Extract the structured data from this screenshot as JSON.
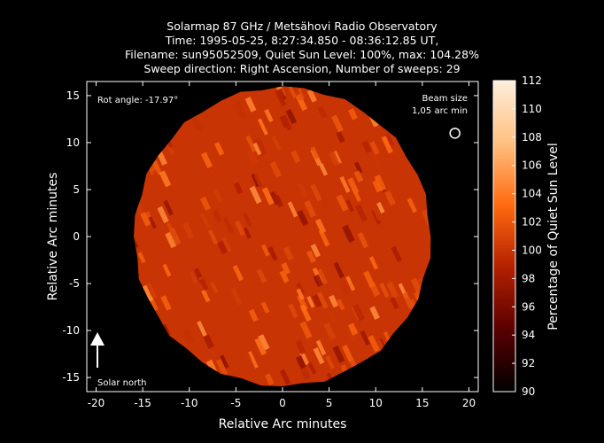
{
  "chart_data": {
    "type": "heatmap",
    "title_lines": [
      "Solarmap 87 GHz / Metsähovi Radio Observatory",
      "Time: 1995-05-25,  8:27:34.850 - 08:36:12.85 UT,",
      "Filename: sun95052509, Quiet Sun Level: 100%, max: 104.28%",
      "Sweep direction: Right Ascension, Number of sweeps: 29"
    ],
    "xlabel": "Relative Arc minutes",
    "ylabel": "Relative Arc minutes",
    "xlim": [
      -21,
      21
    ],
    "ylim": [
      -16.5,
      16.5
    ],
    "xticks": [
      -20,
      -15,
      -10,
      -5,
      0,
      5,
      10,
      15,
      20
    ],
    "yticks": [
      -15,
      -10,
      -5,
      0,
      5,
      10,
      15
    ],
    "colorbar": {
      "label": "Percentage of Quiet Sun Level",
      "range": [
        90,
        112
      ],
      "ticks": [
        90,
        92,
        94,
        96,
        98,
        100,
        102,
        104,
        106,
        108,
        110,
        112
      ],
      "colormap": [
        "#000000",
        "#5a0000",
        "#b32000",
        "#ff6a10",
        "#ffc080",
        "#ffeedd"
      ]
    },
    "disk": {
      "center": [
        0,
        0
      ],
      "radius_arcmin": 15.9,
      "typical_level": 100,
      "max_level": 104.28
    },
    "annotations": {
      "rot_angle": "Rot angle: -17.97°",
      "beam_size_label": "Beam size",
      "beam_size_value": "1,05 arc min",
      "beam_center": [
        18.5,
        11
      ],
      "solar_north": "Solar north"
    }
  }
}
